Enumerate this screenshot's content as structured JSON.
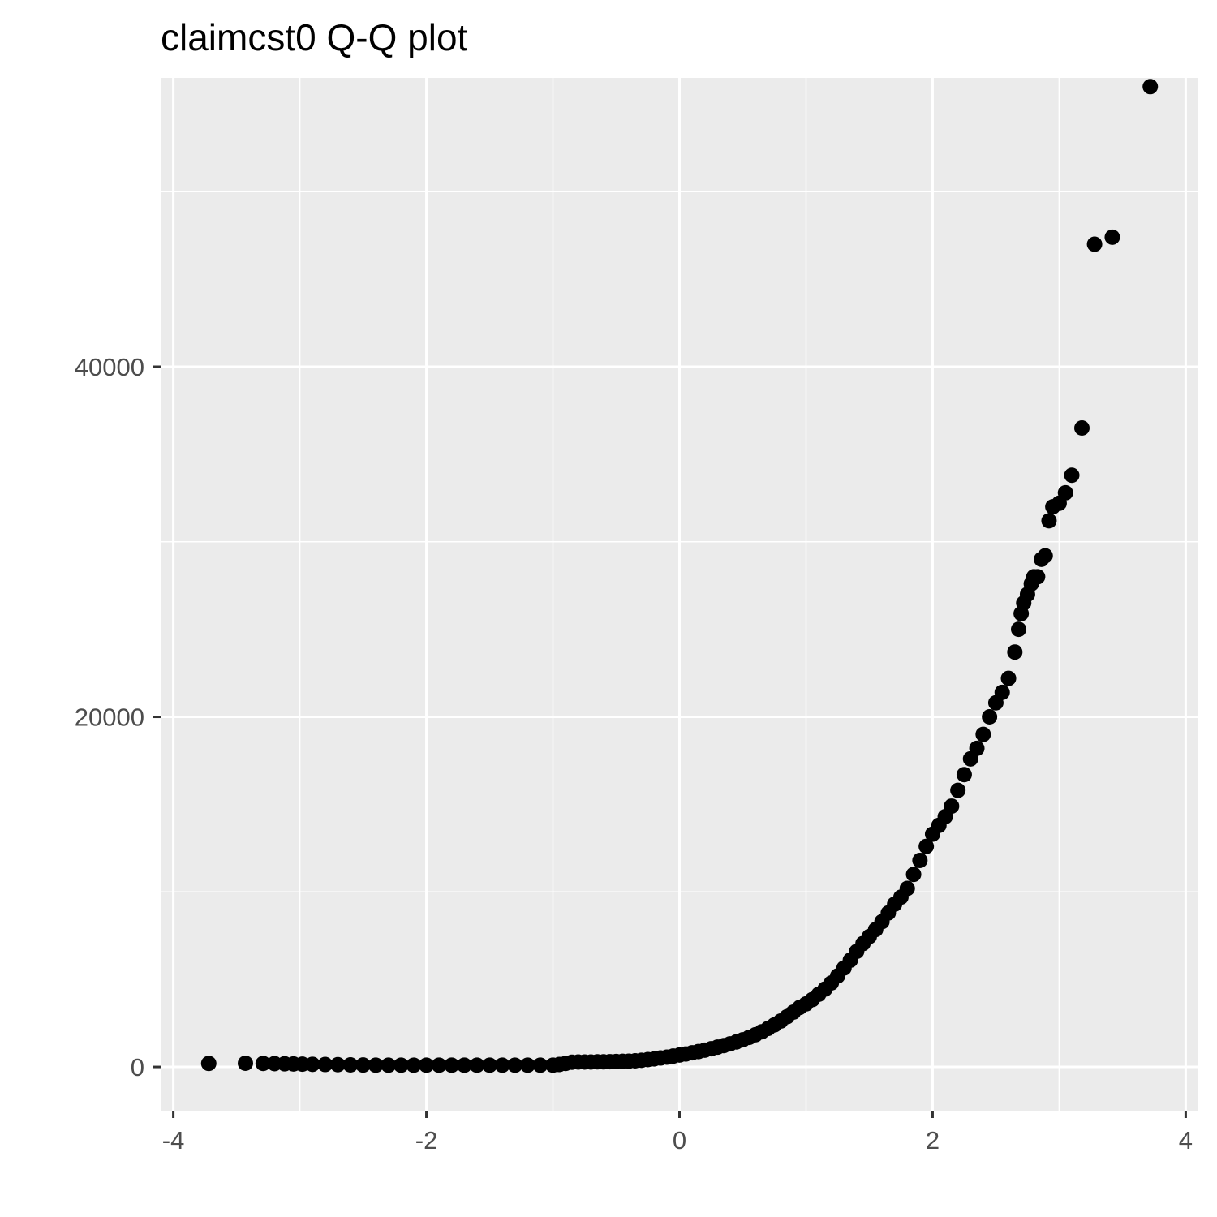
{
  "chart_data": {
    "type": "scatter",
    "title": "claimcst0 Q-Q plot",
    "xlabel": "",
    "ylabel": "",
    "xlim": [
      -4.1,
      4.1
    ],
    "ylim": [
      -2500,
      56500
    ],
    "x_ticks": [
      -4,
      -2,
      0,
      2,
      4
    ],
    "x_tick_labels": [
      "-4",
      "-2",
      "0",
      "2",
      "4"
    ],
    "y_ticks": [
      0,
      20000,
      40000
    ],
    "y_tick_labels": [
      "0",
      "20000",
      "40000"
    ],
    "grid": true,
    "legend": "none",
    "colors": {
      "panel": "#ebebeb",
      "grid": "#ffffff",
      "point": "#000000",
      "tick_text": "#4d4d4d"
    },
    "series": [
      {
        "points": [
          [
            -3.72,
            200
          ],
          [
            -3.43,
            210
          ],
          [
            -3.29,
            200
          ],
          [
            -3.2,
            190
          ],
          [
            -3.12,
            180
          ],
          [
            -3.05,
            170
          ],
          [
            -2.98,
            160
          ],
          [
            -2.9,
            150
          ],
          [
            -2.8,
            140
          ],
          [
            -2.7,
            130
          ],
          [
            -2.6,
            120
          ],
          [
            -2.5,
            110
          ],
          [
            -2.4,
            100
          ],
          [
            -2.3,
            100
          ],
          [
            -2.2,
            100
          ],
          [
            -2.1,
            100
          ],
          [
            -2.0,
            100
          ],
          [
            -1.9,
            100
          ],
          [
            -1.8,
            100
          ],
          [
            -1.7,
            100
          ],
          [
            -1.6,
            100
          ],
          [
            -1.5,
            100
          ],
          [
            -1.4,
            100
          ],
          [
            -1.3,
            100
          ],
          [
            -1.2,
            100
          ],
          [
            -1.1,
            100
          ],
          [
            -1.0,
            100
          ],
          [
            -0.95,
            140
          ],
          [
            -0.9,
            200
          ],
          [
            -0.85,
            270
          ],
          [
            -0.8,
            280
          ],
          [
            -0.75,
            280
          ],
          [
            -0.7,
            280
          ],
          [
            -0.65,
            290
          ],
          [
            -0.6,
            290
          ],
          [
            -0.55,
            300
          ],
          [
            -0.5,
            310
          ],
          [
            -0.45,
            320
          ],
          [
            -0.4,
            330
          ],
          [
            -0.35,
            350
          ],
          [
            -0.3,
            380
          ],
          [
            -0.25,
            420
          ],
          [
            -0.2,
            460
          ],
          [
            -0.15,
            510
          ],
          [
            -0.1,
            560
          ],
          [
            -0.05,
            620
          ],
          [
            0.0,
            680
          ],
          [
            0.05,
            740
          ],
          [
            0.1,
            810
          ],
          [
            0.15,
            880
          ],
          [
            0.2,
            960
          ],
          [
            0.25,
            1040
          ],
          [
            0.3,
            1130
          ],
          [
            0.35,
            1220
          ],
          [
            0.4,
            1320
          ],
          [
            0.45,
            1430
          ],
          [
            0.5,
            1550
          ],
          [
            0.55,
            1690
          ],
          [
            0.6,
            1840
          ],
          [
            0.65,
            2010
          ],
          [
            0.7,
            2200
          ],
          [
            0.75,
            2400
          ],
          [
            0.8,
            2620
          ],
          [
            0.85,
            2870
          ],
          [
            0.9,
            3130
          ],
          [
            0.95,
            3400
          ],
          [
            1.0,
            3600
          ],
          [
            1.05,
            3850
          ],
          [
            1.1,
            4150
          ],
          [
            1.15,
            4450
          ],
          [
            1.2,
            4800
          ],
          [
            1.25,
            5200
          ],
          [
            1.3,
            5650
          ],
          [
            1.35,
            6100
          ],
          [
            1.4,
            6600
          ],
          [
            1.45,
            7050
          ],
          [
            1.5,
            7450
          ],
          [
            1.55,
            7850
          ],
          [
            1.6,
            8300
          ],
          [
            1.65,
            8800
          ],
          [
            1.7,
            9300
          ],
          [
            1.75,
            9700
          ],
          [
            1.8,
            10200
          ],
          [
            1.85,
            11000
          ],
          [
            1.9,
            11800
          ],
          [
            1.95,
            12600
          ],
          [
            2.0,
            13300
          ],
          [
            2.05,
            13800
          ],
          [
            2.1,
            14300
          ],
          [
            2.15,
            14900
          ],
          [
            2.2,
            15800
          ],
          [
            2.25,
            16700
          ],
          [
            2.3,
            17600
          ],
          [
            2.35,
            18200
          ],
          [
            2.4,
            19000
          ],
          [
            2.45,
            20000
          ],
          [
            2.5,
            20800
          ],
          [
            2.55,
            21400
          ],
          [
            2.6,
            22200
          ],
          [
            2.65,
            23700
          ],
          [
            2.68,
            25000
          ],
          [
            2.7,
            25900
          ],
          [
            2.72,
            26500
          ],
          [
            2.75,
            27000
          ],
          [
            2.78,
            27600
          ],
          [
            2.8,
            28000
          ],
          [
            2.83,
            28000
          ],
          [
            2.86,
            29000
          ],
          [
            2.89,
            29200
          ],
          [
            2.92,
            31200
          ],
          [
            2.95,
            32000
          ],
          [
            3.0,
            32200
          ],
          [
            3.05,
            32800
          ],
          [
            3.1,
            33800
          ],
          [
            3.18,
            36500
          ],
          [
            3.28,
            47000
          ],
          [
            3.42,
            47400
          ],
          [
            3.72,
            56000
          ]
        ]
      }
    ]
  }
}
